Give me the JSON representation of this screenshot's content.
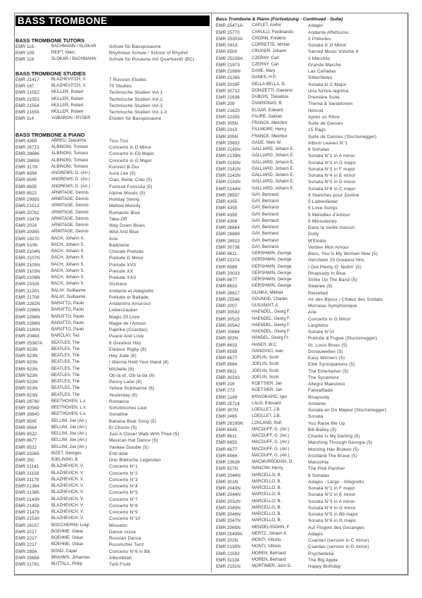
{
  "title": "BASS TROMBONE",
  "sections": [
    {
      "heading": "BASS TROMBONE TUTORS",
      "rows": [
        [
          "EMR 115",
          "BACHMANN / SLOKAR",
          "Schule für Bassposaune"
        ],
        [
          "EMR 109",
          "REIFT, Marc",
          "Rhythmus Schule / School of Rhythm"
        ],
        [
          "EMR 119",
          "SLOKAR / BACHMANN",
          "Schule für Posaune mit Quartventil (BC)"
        ]
      ]
    },
    {
      "heading": "BASS TROMBONE STUDIES",
      "rows": [
        [
          "EMR 21417",
          "BLAZHEVITCH, V.",
          "7 Russian Etudes"
        ],
        [
          "EMR 167",
          "BLAZHEVITCH, V.",
          "70 Studies"
        ],
        [
          "EMR 21552",
          "MÜLLER, Robert",
          "Technische Studien Vol.1"
        ],
        [
          "EMR 21553",
          "MÜLLER, Robert",
          "Technische Studien Vol.2"
        ],
        [
          "EMR 21554",
          "MÜLLER, Robert",
          "Technische Studien Vol.3"
        ],
        [
          "EMR 21555",
          "MÜLLER, Robert",
          "Technische Studien Vol.1-3"
        ],
        [
          "EMR 114",
          "VOBARON / RYSER",
          "Etüden für Bassposaune"
        ]
      ]
    },
    {
      "heading": "BASS TROMBONE & PIANO",
      "rows": [
        [
          "EMR 4369",
          "ABREU, Zequinha",
          "Tico-Tico"
        ],
        [
          "EMR 28713",
          "ALBINONI, Tomaso",
          "Concerto in D Minor"
        ],
        [
          "EMR 28686",
          "ALBINONI, Tomaso",
          "Concerto in Eb Major"
        ],
        [
          "EMR 28659",
          "ALBINONI, Tomaso",
          "Concerto in G Major"
        ],
        [
          "EMR 317N",
          "ALBINONI, Tomaso",
          "Konzert B-Dur"
        ],
        [
          "EMR 8564",
          "ANDREWS, D. (Arr.)",
          "Aura Lee (5)"
        ],
        [
          "EMR 8545",
          "ANDREWS, D. (Arr.)",
          "Ciao, Bella, Ciao (5)"
        ],
        [
          "EMR 8655",
          "ANDREWS, D. (Arr.)",
          "Funiculi Funicula (5)"
        ],
        [
          "EMR 8522",
          "ARMITAGE, Dennis",
          "Alpine Moods (5)"
        ],
        [
          "EMR 19955",
          "ARMITAGE, Dennis",
          "Holiday Swing"
        ],
        [
          "EMR 21513",
          "ARMITAGE, Dennis",
          "Mellow Melody"
        ],
        [
          "EMR 20762",
          "ARMITAGE, Dennis",
          "Romantic Blue"
        ],
        [
          "EMR 23478",
          "ARMITAGE, Dennis",
          "Take-Off"
        ],
        [
          "EMR 2024",
          "ARMITAGE, Dennis",
          "Way Down Blues"
        ],
        [
          "EMR 20955",
          "ARMITAGE, Dennis",
          "Wild And Blue"
        ],
        [
          "EMR 19270",
          "BACH, Johann S.",
          "Aria"
        ],
        [
          "EMR 510N",
          "BACH, Johann S.",
          "Badinerie"
        ],
        [
          "EMR 2104N",
          "BACH, Johann S.",
          "Chorale Prelude"
        ],
        [
          "EMR 2107N",
          "BACH, Johann S.",
          "Prelude D Minor"
        ],
        [
          "EMR 2105N",
          "BACH, Johann S.",
          "Prelude XVII"
        ],
        [
          "EMR 2103N",
          "BACH, Johann S.",
          "Prelude XX"
        ],
        [
          "EMR 2106N",
          "BACH, Johann S.",
          "Prelude XXII"
        ],
        [
          "EMR 23326",
          "BACH, Johann S.",
          "Siciliano"
        ],
        [
          "EMR 21201",
          "BALAY, Guillaume",
          "Andante et Allegretto"
        ],
        [
          "EMR 21708",
          "BALAY, Guillaume",
          "Prélude et Ballade"
        ],
        [
          "EMR 2282N",
          "BARATTO, Paolo",
          "Andantino Amoroso"
        ],
        [
          "EMR 2286N",
          "BARATTO, Paolo",
          "Liebeszauber"
        ],
        [
          "EMR 2286N",
          "BARATTO, Paolo",
          "Magic Of Love"
        ],
        [
          "EMR 2286N",
          "BARATTO, Paolo",
          "Magie de l'Amour"
        ],
        [
          "EMR 2180N",
          "BARATTO, Paolo",
          "Paprika (Csardas)"
        ],
        [
          "EMR 20483",
          "BARCLAY, Ted",
          "Peace And Love"
        ],
        [
          "EMR 25387A",
          "BEATLES, The",
          "8 Greatest Hits"
        ],
        [
          "EMR 923N",
          "BEATLES, The",
          "Eleanor Rigby (8)"
        ],
        [
          "EMR 923N",
          "BEATLES, The",
          "Hey Jude (8)"
        ],
        [
          "EMR 923N",
          "BEATLES, The",
          "I Wanna Hold Your Hand (8)"
        ],
        [
          "EMR 923N",
          "BEATLES, The",
          "Michelle (8)"
        ],
        [
          "EMR 923N",
          "BEATLES, The",
          "Ob-la-di, Ob-la-da (8)"
        ],
        [
          "EMR 923N",
          "BEATLES, The",
          "Penny Lane (8)"
        ],
        [
          "EMR 923N",
          "BEATLES, The",
          "Yellow Submarine (8)"
        ],
        [
          "EMR 923N",
          "BEATLES, The",
          "Yesterday (8)"
        ],
        [
          "EMR 28790",
          "BEETHOVEN, L.v.",
          "Romance"
        ],
        [
          "EMR 30569",
          "BEETHOVEN, L.v.",
          "Schottisches Lied"
        ],
        [
          "EMR 28840",
          "BEETHOVEN, L.v.",
          "Sonatine"
        ],
        [
          "EMR 8545",
          "BELLINI, Joe (Arr.)",
          "Banana Boat Song (5)"
        ],
        [
          "EMR 8564",
          "BELLINI, Joe (Arr.)",
          "El Choclo (5)"
        ],
        [
          "EMR 8522",
          "BELLINI, Joe (Arr.)",
          "Just A Closer Walk With Thee (5)"
        ],
        [
          "EMR 8677",
          "BELLINI, Joe (Arr.)",
          "Mexican Hat Dance (5)"
        ],
        [
          "EMR 8522",
          "BELLINI, Joe (Arr.)",
          "Yankee Doodle (5)"
        ],
        [
          "EMR 23365",
          "BIZET, Georges",
          "Entr'acte"
        ],
        [
          "EMR 292",
          "BJELINSKI, B.",
          "Drei Biblische Legenden"
        ],
        [
          "EMR 21141",
          "BLAZHEVICH, V.",
          "Concerto N°1"
        ],
        [
          "EMR 21158",
          "BLAZHEVICH, V.",
          "Concerto N°2"
        ],
        [
          "EMR 21178",
          "BLAZHEVICH, V.",
          "Concerto N°3"
        ],
        [
          "EMR 21364",
          "BLAZHEVICH, V.",
          "Concerto N°4"
        ],
        [
          "EMR 21385",
          "BLAZHEVICH, V.",
          "Concerto N°5"
        ],
        [
          "EMR 21439",
          "BLAZHEVICH, V.",
          "Concerto N°7"
        ],
        [
          "EMR 21459",
          "BLAZHEVICH, V.",
          "Concerto N°8"
        ],
        [
          "EMR 21479",
          "BLAZHEVICH, V.",
          "Concerto N°9"
        ],
        [
          "EMR 21530",
          "BLAZHEVICH, V.",
          "Concerto N°10"
        ],
        [
          "EMR 24157",
          "BOCCHERINI, Luigi",
          "Minuetto"
        ],
        [
          "EMR 2217",
          "BOEHME, Oskar",
          "Danse russe"
        ],
        [
          "EMR 2217",
          "BOEHME, Oskar",
          "Russian Dance"
        ],
        [
          "EMR 2217",
          "BOEHME, Oskar",
          "Russischer Tanz"
        ],
        [
          "EMR 289A",
          "BOND, Capel",
          "Concerto N°6 in Bb"
        ],
        [
          "EMR 25658",
          "BRAHMS, Johannes",
          "Albumblatt"
        ],
        [
          "EMR 21781",
          "BUTTALL, Philip",
          "Tutti Frutti"
        ]
      ]
    }
  ],
  "continued": {
    "heading": "Bass Trombone & Piano (Fortsetzung - Continued - Suite)",
    "rows": [
      [
        "EMR 25471A",
        "CAPLET, André",
        "Adagio"
      ],
      [
        "EMR 25770",
        "CARULLI, Ferdinando",
        "Andante Affettuoso"
      ],
      [
        "EMR 25303A",
        "CHOPIN, Frédéric",
        "2 Préludes"
      ],
      [
        "EMR 291A",
        "CORRETTE, Michel",
        "Sonata in D Minor"
      ],
      [
        "EMR 8500",
        "CRÜGER, Johann",
        "Sacred Music Volume 4"
      ],
      [
        "EMR 25239A",
        "CZERNY, Carl",
        "2 Marches"
      ],
      [
        "EMR 21973",
        "CZERNY, Carl",
        "Grande Marche"
      ],
      [
        "EMR 2168N",
        "DANE, Mary",
        "Las Cañadas"
      ],
      [
        "EMR 21266",
        "DANKS, H.P.",
        "Silberfäden"
      ],
      [
        "EMR 2039F",
        "DELLA BELLA, D.",
        "Sonata in C Major"
      ],
      [
        "EMR 30712",
        "DONIZETTI, Gaetano",
        "Una furtiva lagrima"
      ],
      [
        "EMR 21636",
        "DUBOIS, Théodore",
        "Première Suite"
      ],
      [
        "EMR 209",
        "DVARIONAS, B.",
        "Thema & Variationen"
      ],
      [
        "EMR 21620",
        "ELGAR, Edward",
        "Nimrod"
      ],
      [
        "EMR 22355",
        "FAURE, Gabriel",
        "Après un Rêve"
      ],
      [
        "EMR 305N",
        "FRANCK, Melchior",
        "Suite de Danses"
      ],
      [
        "EMR 2310",
        "FILLMORE, Henry",
        "15 Rags"
      ],
      [
        "EMR 305N",
        "FRANCK, Melchior",
        "Suite de Danses (Sturzenegger)"
      ],
      [
        "EMR 25602",
        "GADE, Niels W.",
        "Album Leaves N°1"
      ],
      [
        "EMR 2145N",
        "GALLIARD, Johann E.",
        "6 Sonatas"
      ],
      [
        "EMR 2139N",
        "GALLIARD, Johann E.",
        "Sonata N°1 in A minor"
      ],
      [
        "EMR 2140N",
        "GALLIARD, Johann E.",
        "Sonata N°2 in G major"
      ],
      [
        "EMR 2141N",
        "GALLIARD, Johann E.",
        "Sonata N°3 in F major"
      ],
      [
        "EMR 2142N",
        "GALLIARD, Johann E.",
        "Sonata N°4 in E minor"
      ],
      [
        "EMR 2143N",
        "GALLIARD, Johann E.",
        "Sonata N°5 in D minor"
      ],
      [
        "EMR 2144N",
        "GALLIARD, Johann E.",
        "Sonata N°6 in C major"
      ],
      [
        "EMR 28937",
        "GAY, Bertrand",
        "3 Sketches pour Justine"
      ],
      [
        "EMR 4355",
        "GAY, Bertrand",
        "5 Liebeslieder"
      ],
      [
        "EMR 4355",
        "GAY, Bertrand",
        "5 Love-Songs"
      ],
      [
        "EMR 4355",
        "GAY, Bertrand",
        "5 Mélodies d'Amour"
      ],
      [
        "EMR 4308",
        "GAY, Bertrand",
        "5 Minouteries"
      ],
      [
        "EMR 28864",
        "GAY, Bertrand",
        "Dans la vieille maison"
      ],
      [
        "EMR 28889",
        "GAY, Bertrand",
        "Dolly"
      ],
      [
        "EMR 28913",
        "GAY, Bertrand",
        "M'Elodie"
      ],
      [
        "EMR 30736",
        "GAY, Bertrand",
        "Verbier Mon Amour"
      ],
      [
        "EMR 8611",
        "GERSHWIN, George",
        "Bess, You Is My Woman Now (5)"
      ],
      [
        "EMR 22374",
        "GERSHWIN, George",
        "Gershwin 20 Greatest Hits"
      ],
      [
        "EMR 8589",
        "GERSHWIN, George",
        "I Got Plenty O' Nuttin' (5)"
      ],
      [
        "EMR 20033",
        "GERSHWIN, George",
        "Rhapsody In Blue"
      ],
      [
        "EMR 8677",
        "GERSHWIN, George",
        "Strike Up The Band (5)"
      ],
      [
        "EMR 8633",
        "GERSHWIN, George",
        "Swanee (5)"
      ],
      [
        "EMR 28817",
        "GLINKA, Mikhail",
        "Reiselied"
      ],
      [
        "EMR 25546",
        "GOUNOD, Charles",
        "Air des Bijoux / Chœur des Soldats"
      ],
      [
        "EMR 2007",
        "GUILMANT, A.",
        "Morceau Symphonique"
      ],
      [
        "EMR 30592",
        "HAENDEL, Georg F.",
        "Arie"
      ],
      [
        "EMR 30515",
        "HAENDEL, Georg F.",
        "Concerto in G Minor"
      ],
      [
        "EMR 30542",
        "HAENDEL, Georg F.",
        "Larghetto"
      ],
      [
        "EMR 30684",
        "HAENDEL, Georg F.",
        "Sonate N°VI"
      ],
      [
        "EMR 302N",
        "HÄNDEL, Georg Fr.",
        "Prelude & Fugue (Sturzenegger)"
      ],
      [
        "EMR 8633",
        "HANDY, W.C.",
        "St. Louis Blues (5)"
      ],
      [
        "EMR 8589",
        "IVANOVICI, Ivan",
        "Donauwellen (5)"
      ],
      [
        "EMR 8677",
        "JOPLIN, Scott",
        "Easy Winners (5)"
      ],
      [
        "EMR 8564",
        "JOPLIN, Scott",
        "Elite Syncopations (5)"
      ],
      [
        "EMR 8611",
        "JOPLIN, Scott",
        "The Entertainer (5)"
      ],
      [
        "EMR 30243",
        "JOPLIN, Scott",
        "The Sycamore"
      ],
      [
        "EMR 216",
        "KOETSIER, Jan",
        "Allegro Maestoso"
      ],
      [
        "EMR 273",
        "KOETSIER, Jan",
        "Falstaffiade"
      ],
      [
        "EMR 2189",
        "KRIVOKAPIC, Igor",
        "Rhapsody"
      ],
      [
        "EMR 25714",
        "LALO, Edouard",
        "Andante"
      ],
      [
        "EMR 307N",
        "LOEILLET, J.B.",
        "Sonate en Do Majeur (Sturzenegger)"
      ],
      [
        "EMR 2465",
        "LOEILLET, J.B.",
        "Sonata"
      ],
      [
        "EMR 26195N",
        "LOVLAND, Rolf",
        "You Raise Me Up"
      ],
      [
        "EMR 8545",
        "MACDUFF, G. (Arr.)",
        "Bill Bailey (5)"
      ],
      [
        "EMR 8611",
        "MACDUFF, G. (Arr.)",
        "Charlie Is My Darling (5)"
      ],
      [
        "EMR 8655",
        "MACDUFF, G. (Arr.)",
        "Marching Through Georgia (5)"
      ],
      [
        "EMR 8677",
        "MACDUFF, G. (Arr.)",
        "Morning Has Broken (5)"
      ],
      [
        "EMR 8564",
        "MACDUFF, G. (Arr.)",
        "Scotland The Brave (5)"
      ],
      [
        "EMR 23639",
        "MACMURROUGH, D.",
        "Macushla"
      ],
      [
        "EMR 927N",
        "MANCINI, Henry",
        "The Pink Panther"
      ],
      [
        "EMR 2048N",
        "MARCELLO, B.",
        "6 Sonatas"
      ],
      [
        "EMR 301N",
        "MARCELLO, B.",
        "Adagio - Largo - Allegretto"
      ],
      [
        "EMR 2043N",
        "MARCELLO, B.",
        "Sonata N°1 in F major"
      ],
      [
        "EMR 2044N",
        "MARCELLO, B.",
        "Sonata N°2 in E minor"
      ],
      [
        "EMR 2032N",
        "MARCELLO, B.",
        "Sonata N°3 in A minor"
      ],
      [
        "EMR 2045N",
        "MARCELLO, B.",
        "Sonata N°4 in G minor"
      ],
      [
        "EMR 2046N",
        "MARCELLO, B.",
        "Sonata N°5 in Bb major"
      ],
      [
        "EMR 2047N",
        "MARCELLO, B.",
        "Sonata N°6 in G major"
      ],
      [
        "EMR 2065N",
        "MENDELSSOHN, F.",
        "Auf Flügeln des Gesanges"
      ],
      [
        "EMR 25499A",
        "MERTZ, Johann K.",
        "Adagio"
      ],
      [
        "EMR 202N",
        "MONTI, Vittorio",
        "Csardas (version in C minor)"
      ],
      [
        "EMR 2195N",
        "MONTI, Vittorio",
        "Csardas (version in D minor)"
      ],
      [
        "EMR 21592",
        "MOREN, Bertrand",
        "Psychedelia"
      ],
      [
        "EMR 31134",
        "MOREN, Bertrand",
        "The Big Apple"
      ],
      [
        "EMR 2151N",
        "MORTIMER, John G.",
        "Happy Birthday"
      ]
    ]
  }
}
